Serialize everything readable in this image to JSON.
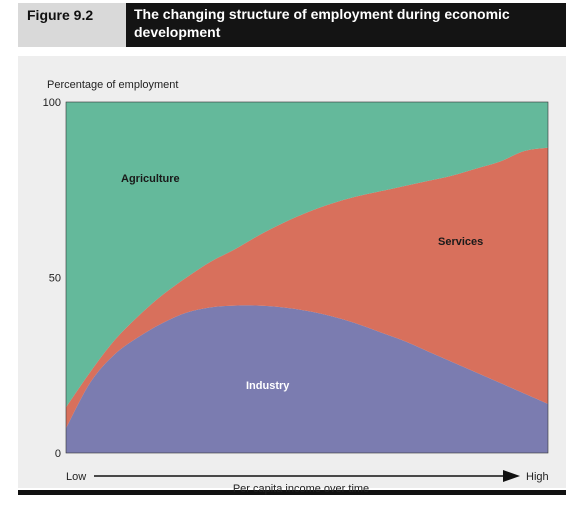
{
  "figure": {
    "label": "Figure 9.2",
    "title": "The changing structure of employment during economic development"
  },
  "colors": {
    "agriculture": "#64b99b",
    "services": "#d8705c",
    "industry": "#7b7cb0",
    "header_dark": "#141414",
    "header_light": "#d9d9d9",
    "panel": "#eeeeee"
  },
  "chart_data": {
    "type": "area",
    "stacked": true,
    "title": "",
    "ylabel": "Percentage of employment",
    "xlabel": "Per capita income over time",
    "x_start_label": "Low",
    "x_end_label": "High",
    "ylim": [
      0,
      100
    ],
    "yticks": [
      0,
      50,
      100
    ],
    "grid": false,
    "x": [
      0,
      0.05,
      0.1,
      0.15,
      0.2,
      0.25,
      0.3,
      0.35,
      0.4,
      0.45,
      0.5,
      0.55,
      0.6,
      0.65,
      0.7,
      0.75,
      0.8,
      0.85,
      0.9,
      0.95,
      1
    ],
    "series": [
      {
        "name": "Industry",
        "values": [
          7,
          20,
          28,
          33,
          37,
          40,
          41.5,
          42,
          42,
          41.5,
          40.5,
          39,
          37,
          34.5,
          32,
          29,
          26,
          23,
          20,
          17,
          14
        ]
      },
      {
        "name": "Services",
        "values": [
          6,
          3,
          4,
          6,
          8,
          10,
          13,
          16,
          20,
          24,
          28,
          32,
          36,
          40,
          44,
          48.5,
          53,
          58,
          63,
          69,
          73
        ]
      },
      {
        "name": "Agriculture",
        "values": [
          87,
          77,
          68,
          61,
          55,
          50,
          45.5,
          42,
          38,
          34.5,
          31.5,
          29,
          27,
          25.5,
          24,
          22.5,
          21,
          19,
          17,
          14,
          13
        ]
      }
    ]
  }
}
